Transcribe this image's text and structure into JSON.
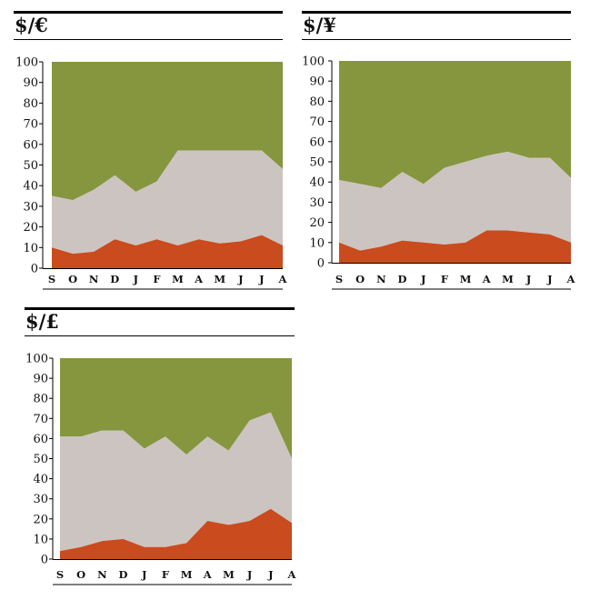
{
  "colors": {
    "bottom": "#C94B1E",
    "middle": "#CCC4C1",
    "top": "#85963F"
  },
  "chart_data": [
    {
      "type": "area",
      "stacked": true,
      "title": "$/€",
      "categories": [
        "S",
        "O",
        "N",
        "D",
        "J",
        "F",
        "M",
        "A",
        "M",
        "J",
        "J",
        "A"
      ],
      "ylim": [
        0,
        100
      ],
      "yticks": [
        0,
        10,
        20,
        30,
        40,
        50,
        60,
        70,
        80,
        90,
        100
      ],
      "series": [
        {
          "values": [
            10,
            7,
            8,
            14,
            11,
            14,
            11,
            14,
            12,
            13,
            16,
            11
          ]
        },
        {
          "values": [
            25,
            26,
            30,
            31,
            26,
            28,
            46,
            43,
            45,
            44,
            41,
            37
          ]
        },
        {
          "values": [
            65,
            67,
            62,
            55,
            63,
            58,
            43,
            43,
            43,
            43,
            43,
            52
          ]
        }
      ]
    },
    {
      "type": "area",
      "stacked": true,
      "title": "$/¥",
      "categories": [
        "S",
        "O",
        "N",
        "D",
        "J",
        "F",
        "M",
        "A",
        "M",
        "J",
        "J",
        "A"
      ],
      "ylim": [
        0,
        100
      ],
      "yticks": [
        0,
        10,
        20,
        30,
        40,
        50,
        60,
        70,
        80,
        90,
        100
      ],
      "series": [
        {
          "values": [
            10,
            6,
            8,
            11,
            10,
            9,
            10,
            16,
            16,
            15,
            14,
            10
          ]
        },
        {
          "values": [
            31,
            33,
            29,
            34,
            29,
            38,
            40,
            37,
            39,
            37,
            38,
            32
          ]
        },
        {
          "values": [
            59,
            61,
            63,
            55,
            61,
            53,
            50,
            47,
            45,
            48,
            48,
            58
          ]
        }
      ]
    },
    {
      "type": "area",
      "stacked": true,
      "title": "$/£",
      "categories": [
        "S",
        "O",
        "N",
        "D",
        "J",
        "F",
        "M",
        "A",
        "M",
        "J",
        "J",
        "A"
      ],
      "ylim": [
        0,
        100
      ],
      "yticks": [
        0,
        10,
        20,
        30,
        40,
        50,
        60,
        70,
        80,
        90,
        100
      ],
      "series": [
        {
          "values": [
            4,
            6,
            9,
            10,
            6,
            6,
            8,
            19,
            17,
            19,
            25,
            18
          ]
        },
        {
          "values": [
            57,
            55,
            55,
            54,
            49,
            55,
            44,
            42,
            37,
            50,
            48,
            32
          ]
        },
        {
          "values": [
            39,
            39,
            36,
            36,
            45,
            39,
            48,
            39,
            46,
            31,
            27,
            50
          ]
        }
      ]
    }
  ]
}
